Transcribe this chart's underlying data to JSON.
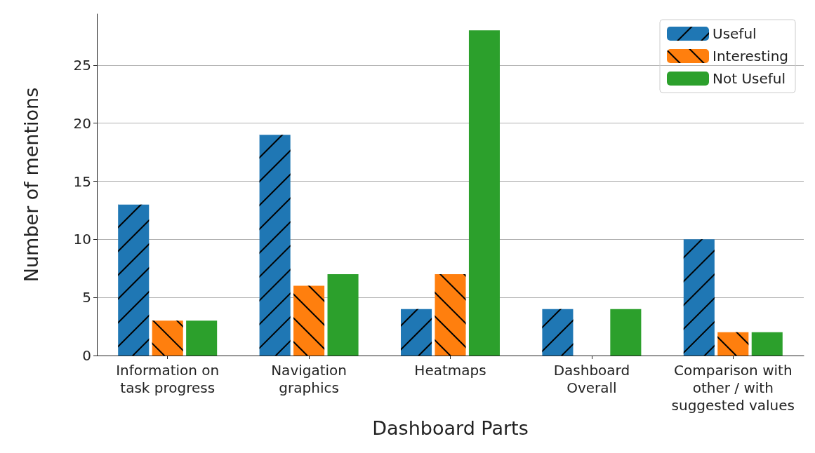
{
  "chart_data": {
    "type": "bar",
    "xlabel": "Dashboard Parts",
    "ylabel": "Number of mentions",
    "categories": [
      "Information on\ntask progress",
      "Navigation\ngraphics",
      "Heatmaps",
      "Dashboard\nOverall",
      "Comparison with\nother / with\nsuggested values"
    ],
    "series": [
      {
        "name": "Useful",
        "color": "#1f77b4",
        "values": [
          13,
          19,
          4,
          4,
          10
        ]
      },
      {
        "name": "Interesting",
        "color": "#ff7f0e",
        "values": [
          3,
          6,
          7,
          0,
          2
        ]
      },
      {
        "name": "Not Useful",
        "color": "#2ca02c",
        "values": [
          3,
          7,
          28,
          4,
          2
        ]
      }
    ],
    "ylim": [
      0,
      29.4
    ],
    "yticks": [
      0,
      5,
      10,
      15,
      20,
      25
    ],
    "grid": "y",
    "legend": "top right"
  }
}
